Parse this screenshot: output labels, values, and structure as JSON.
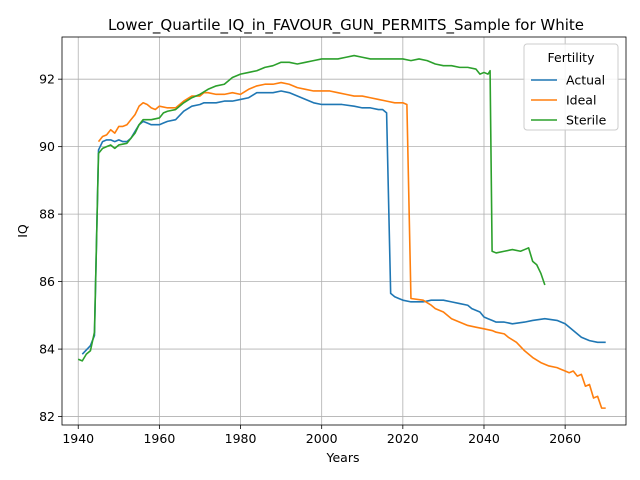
{
  "chart_data": {
    "type": "line",
    "title": "Lower_Quartile_IQ_in_FAVOUR_GUN_PERMITS_Sample for White",
    "xlabel": "Years",
    "ylabel": "IQ",
    "xlim": [
      1936,
      2075
    ],
    "ylim": [
      81.75,
      93.25
    ],
    "xticks": [
      1940,
      1960,
      1980,
      2000,
      2020,
      2040,
      2060
    ],
    "yticks": [
      82,
      84,
      86,
      88,
      90,
      92
    ],
    "grid": true,
    "legend": {
      "title": "Fertility",
      "position": "top-right"
    },
    "series": [
      {
        "name": "Actual",
        "color": "#1f77b4",
        "points": [
          [
            1941,
            83.85
          ],
          [
            1943,
            84.1
          ],
          [
            1944,
            84.4
          ],
          [
            1945,
            89.9
          ],
          [
            1946,
            90.15
          ],
          [
            1947,
            90.2
          ],
          [
            1948,
            90.2
          ],
          [
            1949,
            90.15
          ],
          [
            1950,
            90.2
          ],
          [
            1951,
            90.15
          ],
          [
            1952,
            90.15
          ],
          [
            1953,
            90.25
          ],
          [
            1954,
            90.45
          ],
          [
            1955,
            90.65
          ],
          [
            1956,
            90.75
          ],
          [
            1957,
            90.7
          ],
          [
            1958,
            90.65
          ],
          [
            1960,
            90.65
          ],
          [
            1961,
            90.7
          ],
          [
            1962,
            90.75
          ],
          [
            1964,
            90.8
          ],
          [
            1966,
            91.05
          ],
          [
            1968,
            91.2
          ],
          [
            1970,
            91.25
          ],
          [
            1971,
            91.3
          ],
          [
            1974,
            91.3
          ],
          [
            1976,
            91.35
          ],
          [
            1978,
            91.35
          ],
          [
            1980,
            91.4
          ],
          [
            1982,
            91.45
          ],
          [
            1984,
            91.6
          ],
          [
            1986,
            91.6
          ],
          [
            1988,
            91.6
          ],
          [
            1990,
            91.65
          ],
          [
            1992,
            91.6
          ],
          [
            1994,
            91.5
          ],
          [
            1996,
            91.4
          ],
          [
            1998,
            91.3
          ],
          [
            2000,
            91.25
          ],
          [
            2005,
            91.25
          ],
          [
            2008,
            91.2
          ],
          [
            2010,
            91.15
          ],
          [
            2012,
            91.15
          ],
          [
            2014,
            91.1
          ],
          [
            2015,
            91.1
          ],
          [
            2016,
            91.0
          ],
          [
            2017,
            85.65
          ],
          [
            2018,
            85.55
          ],
          [
            2019,
            85.5
          ],
          [
            2020,
            85.45
          ],
          [
            2022,
            85.4
          ],
          [
            2025,
            85.4
          ],
          [
            2027,
            85.45
          ],
          [
            2030,
            85.45
          ],
          [
            2032,
            85.4
          ],
          [
            2034,
            85.35
          ],
          [
            2036,
            85.3
          ],
          [
            2037,
            85.2
          ],
          [
            2039,
            85.1
          ],
          [
            2040,
            84.95
          ],
          [
            2041,
            84.9
          ],
          [
            2042,
            84.85
          ],
          [
            2043,
            84.8
          ],
          [
            2045,
            84.8
          ],
          [
            2047,
            84.75
          ],
          [
            2050,
            84.8
          ],
          [
            2052,
            84.85
          ],
          [
            2055,
            84.9
          ],
          [
            2058,
            84.85
          ],
          [
            2060,
            84.75
          ],
          [
            2062,
            84.55
          ],
          [
            2064,
            84.35
          ],
          [
            2066,
            84.25
          ],
          [
            2068,
            84.2
          ],
          [
            2069,
            84.2
          ],
          [
            2070,
            84.2
          ]
        ]
      },
      {
        "name": "Ideal",
        "color": "#ff7f0e",
        "points": [
          [
            1945,
            90.15
          ],
          [
            1946,
            90.3
          ],
          [
            1947,
            90.35
          ],
          [
            1948,
            90.5
          ],
          [
            1949,
            90.4
          ],
          [
            1950,
            90.6
          ],
          [
            1951,
            90.6
          ],
          [
            1952,
            90.65
          ],
          [
            1953,
            90.8
          ],
          [
            1954,
            90.95
          ],
          [
            1955,
            91.2
          ],
          [
            1956,
            91.3
          ],
          [
            1957,
            91.25
          ],
          [
            1958,
            91.15
          ],
          [
            1959,
            91.1
          ],
          [
            1960,
            91.2
          ],
          [
            1962,
            91.15
          ],
          [
            1964,
            91.15
          ],
          [
            1966,
            91.35
          ],
          [
            1968,
            91.5
          ],
          [
            1970,
            91.5
          ],
          [
            1971,
            91.6
          ],
          [
            1972,
            91.6
          ],
          [
            1974,
            91.55
          ],
          [
            1976,
            91.55
          ],
          [
            1978,
            91.6
          ],
          [
            1980,
            91.55
          ],
          [
            1982,
            91.7
          ],
          [
            1984,
            91.8
          ],
          [
            1986,
            91.85
          ],
          [
            1988,
            91.85
          ],
          [
            1990,
            91.9
          ],
          [
            1992,
            91.85
          ],
          [
            1994,
            91.75
          ],
          [
            1996,
            91.7
          ],
          [
            1998,
            91.65
          ],
          [
            2000,
            91.65
          ],
          [
            2002,
            91.65
          ],
          [
            2004,
            91.6
          ],
          [
            2006,
            91.55
          ],
          [
            2008,
            91.5
          ],
          [
            2010,
            91.5
          ],
          [
            2012,
            91.45
          ],
          [
            2014,
            91.4
          ],
          [
            2016,
            91.35
          ],
          [
            2018,
            91.3
          ],
          [
            2020,
            91.3
          ],
          [
            2021,
            91.25
          ],
          [
            2022,
            85.5
          ],
          [
            2025,
            85.45
          ],
          [
            2027,
            85.3
          ],
          [
            2028,
            85.2
          ],
          [
            2030,
            85.1
          ],
          [
            2032,
            84.9
          ],
          [
            2034,
            84.8
          ],
          [
            2036,
            84.7
          ],
          [
            2038,
            84.65
          ],
          [
            2040,
            84.6
          ],
          [
            2042,
            84.55
          ],
          [
            2043,
            84.5
          ],
          [
            2045,
            84.45
          ],
          [
            2046,
            84.35
          ],
          [
            2048,
            84.2
          ],
          [
            2050,
            83.95
          ],
          [
            2052,
            83.75
          ],
          [
            2054,
            83.6
          ],
          [
            2056,
            83.5
          ],
          [
            2058,
            83.45
          ],
          [
            2059,
            83.4
          ],
          [
            2060,
            83.35
          ],
          [
            2061,
            83.3
          ],
          [
            2062,
            83.35
          ],
          [
            2063,
            83.2
          ],
          [
            2064,
            83.25
          ],
          [
            2065,
            82.9
          ],
          [
            2066,
            82.95
          ],
          [
            2067,
            82.55
          ],
          [
            2068,
            82.6
          ],
          [
            2069,
            82.25
          ],
          [
            2070,
            82.25
          ]
        ]
      },
      {
        "name": "Sterile",
        "color": "#2ca02c",
        "points": [
          [
            1940,
            83.7
          ],
          [
            1941,
            83.65
          ],
          [
            1942,
            83.85
          ],
          [
            1943,
            83.95
          ],
          [
            1944,
            84.5
          ],
          [
            1945,
            89.8
          ],
          [
            1946,
            89.95
          ],
          [
            1947,
            90.0
          ],
          [
            1948,
            90.05
          ],
          [
            1949,
            89.95
          ],
          [
            1950,
            90.05
          ],
          [
            1952,
            90.1
          ],
          [
            1954,
            90.4
          ],
          [
            1955,
            90.65
          ],
          [
            1956,
            90.8
          ],
          [
            1958,
            90.8
          ],
          [
            1960,
            90.85
          ],
          [
            1961,
            91.0
          ],
          [
            1962,
            91.05
          ],
          [
            1964,
            91.1
          ],
          [
            1966,
            91.3
          ],
          [
            1968,
            91.45
          ],
          [
            1970,
            91.55
          ],
          [
            1972,
            91.7
          ],
          [
            1974,
            91.8
          ],
          [
            1976,
            91.85
          ],
          [
            1978,
            92.05
          ],
          [
            1980,
            92.15
          ],
          [
            1982,
            92.2
          ],
          [
            1984,
            92.25
          ],
          [
            1986,
            92.35
          ],
          [
            1988,
            92.4
          ],
          [
            1990,
            92.5
          ],
          [
            1992,
            92.5
          ],
          [
            1994,
            92.45
          ],
          [
            1996,
            92.5
          ],
          [
            1998,
            92.55
          ],
          [
            2000,
            92.6
          ],
          [
            2002,
            92.6
          ],
          [
            2004,
            92.6
          ],
          [
            2006,
            92.65
          ],
          [
            2008,
            92.7
          ],
          [
            2010,
            92.65
          ],
          [
            2012,
            92.6
          ],
          [
            2014,
            92.6
          ],
          [
            2016,
            92.6
          ],
          [
            2018,
            92.6
          ],
          [
            2020,
            92.6
          ],
          [
            2022,
            92.55
          ],
          [
            2024,
            92.6
          ],
          [
            2026,
            92.55
          ],
          [
            2028,
            92.45
          ],
          [
            2030,
            92.4
          ],
          [
            2032,
            92.4
          ],
          [
            2034,
            92.35
          ],
          [
            2036,
            92.35
          ],
          [
            2038,
            92.3
          ],
          [
            2039,
            92.15
          ],
          [
            2040,
            92.2
          ],
          [
            2041,
            92.15
          ],
          [
            2041.5,
            92.25
          ],
          [
            2042,
            86.9
          ],
          [
            2043,
            86.85
          ],
          [
            2045,
            86.9
          ],
          [
            2047,
            86.95
          ],
          [
            2049,
            86.9
          ],
          [
            2050,
            86.95
          ],
          [
            2051,
            87.0
          ],
          [
            2052,
            86.6
          ],
          [
            2053,
            86.5
          ],
          [
            2054,
            86.25
          ],
          [
            2055,
            85.9
          ]
        ]
      }
    ]
  }
}
